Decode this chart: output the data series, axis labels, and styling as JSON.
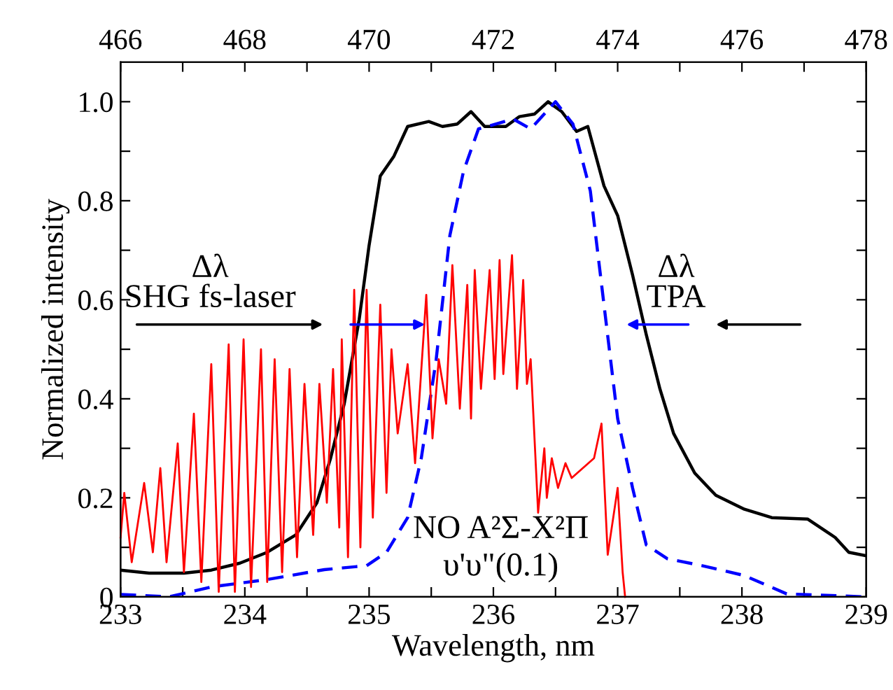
{
  "chart_data": {
    "type": "line",
    "xlabel": "Wavelength, nm",
    "ylabel": "Normalized intensity",
    "xlim": [
      233,
      239
    ],
    "xticks": [
      233,
      {
        "value": 233.5,
        "label": null
      },
      234,
      {
        "value": 234.5,
        "label": null
      },
      235,
      {
        "value": 235.5,
        "label": null
      },
      236,
      {
        "value": 236.5,
        "label": null
      },
      237,
      {
        "value": 237.5,
        "label": null
      },
      238,
      {
        "value": 238.5,
        "label": null
      },
      239
    ],
    "ylim": [
      0,
      1.08
    ],
    "yticks": [
      0,
      {
        "value": 0.1,
        "label": null
      },
      0.2,
      {
        "value": 0.3,
        "label": null
      },
      0.4,
      {
        "value": 0.5,
        "label": null
      },
      0.6,
      {
        "value": 0.7,
        "label": null
      },
      0.8,
      {
        "value": 0.9,
        "label": null
      },
      {
        "value": 1,
        "label": "1.0"
      }
    ],
    "x2lim": [
      466,
      478
    ],
    "x2ticks": [
      466,
      {
        "value": 467,
        "label": null
      },
      468,
      {
        "value": 469,
        "label": null
      },
      470,
      {
        "value": 471,
        "label": null
      },
      472,
      {
        "value": 473,
        "label": null
      },
      474,
      {
        "value": 475,
        "label": null
      },
      476,
      {
        "value": 477,
        "label": null
      },
      478
    ],
    "grid": false,
    "legend": false,
    "series": [
      {
        "color": "#ff0000",
        "line_style": "solid",
        "x": [
          233.0,
          233.03,
          233.09,
          233.19,
          233.26,
          233.32,
          233.37,
          233.46,
          233.51,
          233.59,
          233.65,
          233.73,
          233.79,
          233.87,
          233.92,
          233.99,
          234.05,
          234.13,
          234.18,
          234.24,
          234.3,
          234.36,
          234.42,
          234.48,
          234.55,
          234.6,
          234.66,
          234.71,
          234.76,
          234.78,
          234.83,
          234.88,
          234.93,
          234.98,
          235.03,
          235.09,
          235.14,
          235.18,
          235.23,
          235.31,
          235.37,
          235.46,
          235.51,
          235.56,
          235.62,
          235.67,
          235.73,
          235.79,
          235.82,
          235.85,
          235.9,
          235.97,
          236.01,
          236.05,
          236.08,
          236.15,
          236.19,
          236.24,
          236.27,
          236.3,
          236.36,
          236.41,
          236.43,
          236.47,
          236.52,
          236.58,
          236.63,
          236.81,
          236.87,
          236.92,
          237.0,
          237.04,
          237.06
        ],
        "values": [
          0.12,
          0.21,
          0.07,
          0.23,
          0.09,
          0.26,
          0.07,
          0.31,
          0.05,
          0.37,
          0.03,
          0.47,
          0.01,
          0.51,
          0.01,
          0.52,
          0.02,
          0.5,
          0.03,
          0.48,
          0.05,
          0.46,
          0.08,
          0.43,
          0.125,
          0.43,
          0.19,
          0.46,
          0.14,
          0.52,
          0.08,
          0.62,
          0.1,
          0.62,
          0.16,
          0.59,
          0.21,
          0.5,
          0.33,
          0.47,
          0.27,
          0.61,
          0.32,
          0.48,
          0.39,
          0.67,
          0.38,
          0.63,
          0.36,
          0.66,
          0.42,
          0.66,
          0.44,
          0.68,
          0.45,
          0.69,
          0.42,
          0.64,
          0.43,
          0.48,
          0.17,
          0.3,
          0.2,
          0.28,
          0.22,
          0.27,
          0.24,
          0.28,
          0.35,
          0.085,
          0.22,
          0.05,
          0.0
        ]
      },
      {
        "color": "#000000",
        "line_style": "solid",
        "x": [
          233.0,
          233.23,
          233.51,
          233.73,
          233.96,
          234.18,
          234.41,
          234.58,
          234.69,
          234.8,
          234.92,
          235.0,
          235.09,
          235.2,
          235.31,
          235.48,
          235.59,
          235.71,
          235.82,
          235.93,
          236.1,
          236.21,
          236.33,
          236.44,
          236.55,
          236.67,
          236.76,
          236.89,
          237.0,
          237.12,
          237.23,
          237.34,
          237.45,
          237.62,
          237.79,
          238.02,
          238.24,
          238.53,
          238.75,
          238.86,
          239.0
        ],
        "values": [
          0.054,
          0.048,
          0.048,
          0.054,
          0.068,
          0.09,
          0.125,
          0.19,
          0.28,
          0.39,
          0.56,
          0.71,
          0.85,
          0.89,
          0.95,
          0.96,
          0.95,
          0.955,
          0.98,
          0.95,
          0.95,
          0.97,
          0.975,
          1.0,
          0.98,
          0.94,
          0.95,
          0.83,
          0.77,
          0.65,
          0.53,
          0.42,
          0.33,
          0.25,
          0.205,
          0.177,
          0.16,
          0.157,
          0.12,
          0.09,
          0.083
        ]
      },
      {
        "color": "#0000ff",
        "line_style": "dashed",
        "x": [
          233.0,
          233.39,
          233.73,
          234.18,
          234.64,
          234.98,
          235.14,
          235.31,
          235.42,
          235.54,
          235.65,
          235.76,
          235.88,
          236.16,
          236.3,
          236.5,
          236.64,
          236.78,
          236.89,
          237.0,
          237.12,
          237.23,
          237.4,
          237.68,
          238.02,
          238.36,
          239.0
        ],
        "values": [
          0.005,
          0.0,
          0.02,
          0.035,
          0.055,
          0.063,
          0.09,
          0.16,
          0.28,
          0.48,
          0.73,
          0.86,
          0.945,
          0.965,
          0.945,
          1.0,
          0.955,
          0.82,
          0.59,
          0.36,
          0.22,
          0.105,
          0.077,
          0.063,
          0.043,
          0.006,
          0.0
        ]
      }
    ],
    "annotations": [
      "Δλ\nSHG fs-laser",
      "Δλ\nTPA",
      "NO A²Σ-X²Π",
      "υ'υ\"(0.1)"
    ]
  }
}
